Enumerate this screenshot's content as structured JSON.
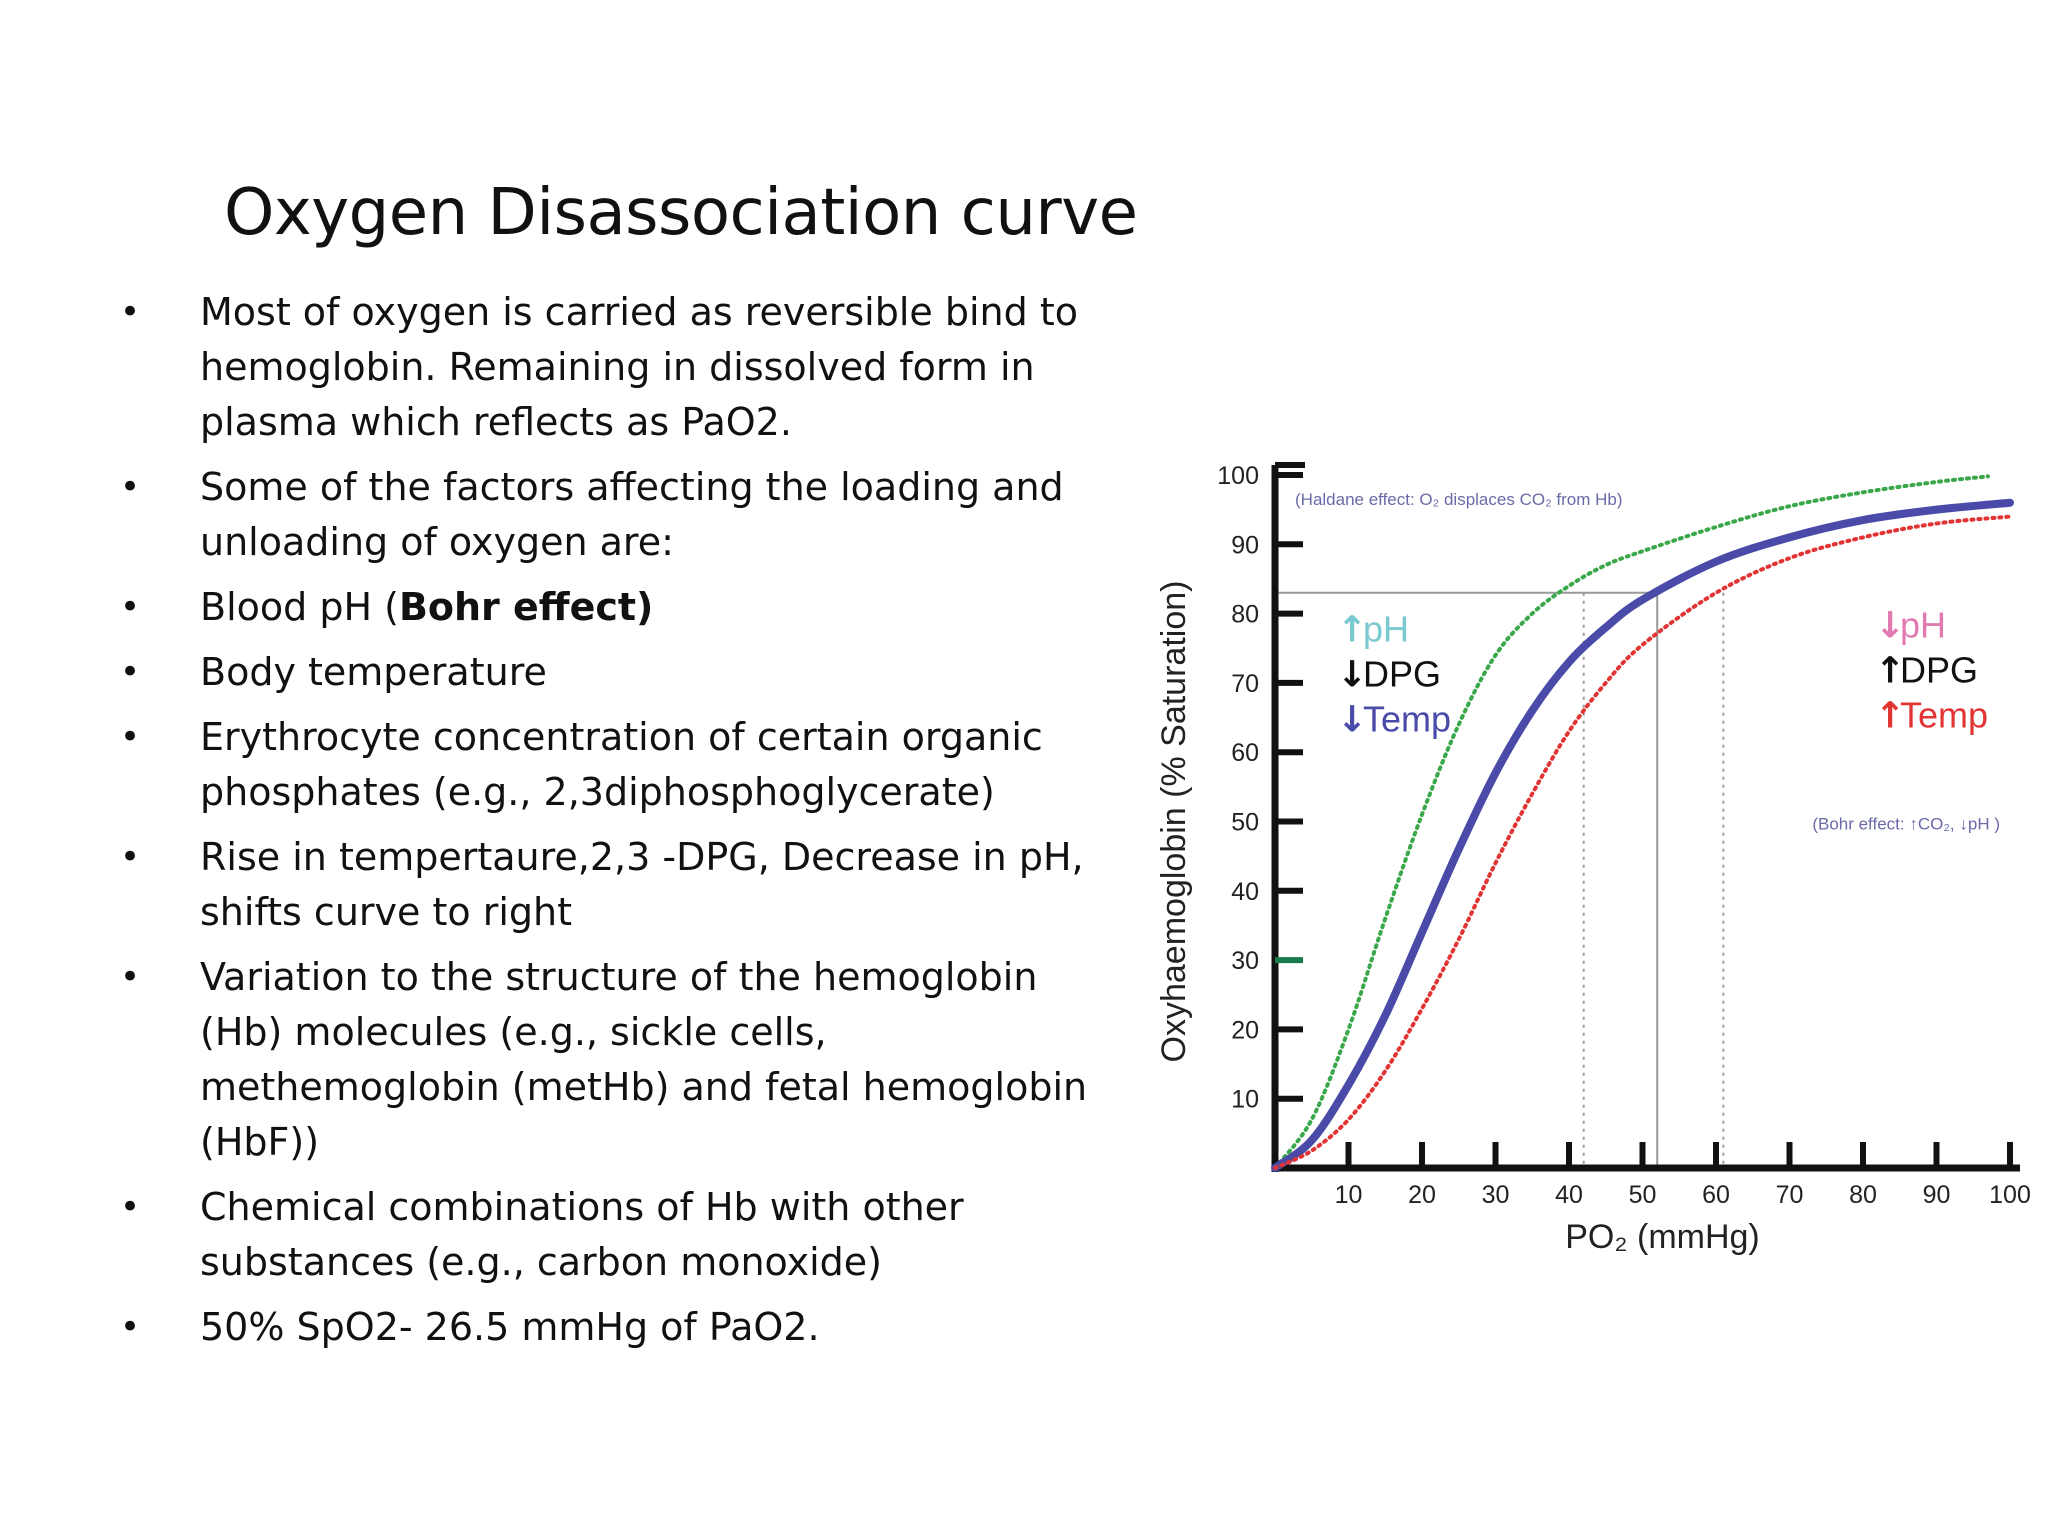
{
  "slide": {
    "title": "Oxygen Disassociation curve",
    "bullets": [
      {
        "text": "Most of oxygen is carried as reversible bind to hemoglobin. Remaining in dissolved form in plasma which reflects as PaO2."
      },
      {
        "text": " Some of the factors affecting the loading and unloading of oxygen are:"
      },
      {
        "text": " Blood pH (",
        "bold": "Bohr effect)"
      },
      {
        "text": " Body temperature"
      },
      {
        "text": " Erythrocyte concentration of certain organic phosphates (e.g., 2,3diphosphoglycerate)"
      },
      {
        "text": "Rise in tempertaure,2,3 -DPG, Decrease in pH, shifts curve to right"
      },
      {
        "text": " Variation to the structure of the hemoglobin (Hb) molecules (e.g., sickle cells, methemoglobin (metHb) and fetal hemoglobin (HbF))"
      },
      {
        "text": " Chemical combinations of Hb with other substances (e.g., carbon monoxide)"
      },
      {
        "text": "50% SpO2- 26.5 mmHg of PaO2."
      }
    ],
    "bullet_symbol": "•"
  },
  "chart_data": {
    "type": "line",
    "xlabel": "PO₂ (mmHg)",
    "ylabel": "Oxyhaemoglobin (% Saturation)",
    "xlim": [
      0,
      100
    ],
    "ylim": [
      0,
      100
    ],
    "xticks": [
      "10",
      "20",
      "30",
      "40",
      "50",
      "60",
      "70",
      "80",
      "90",
      "100"
    ],
    "yticks": [
      "10",
      "20",
      "30",
      "40",
      "50",
      "60",
      "70",
      "80",
      "90",
      "100"
    ],
    "grid": false,
    "series": [
      {
        "style": "dotted",
        "color": "#3aa84a",
        "x": [
          0,
          5,
          10,
          15,
          20,
          25,
          30,
          35,
          40,
          45,
          50,
          60,
          70,
          80,
          90,
          97
        ],
        "y": [
          0,
          7,
          20,
          36,
          51,
          64,
          74,
          80,
          84,
          87,
          89,
          92.5,
          95.5,
          97.5,
          99,
          99.8
        ]
      },
      {
        "style": "solid",
        "color": "#4a4aa8",
        "x": [
          0,
          5,
          10,
          15,
          20,
          25,
          30,
          35,
          40,
          45,
          50,
          60,
          70,
          80,
          90,
          100
        ],
        "y": [
          0,
          4,
          12,
          22,
          34,
          46,
          57,
          66,
          73,
          78,
          82,
          87.5,
          91,
          93.5,
          95,
          96
        ]
      },
      {
        "style": "dotted",
        "color": "#e33434",
        "x": [
          0,
          5,
          10,
          15,
          20,
          25,
          30,
          35,
          40,
          45,
          50,
          60,
          70,
          80,
          90,
          100
        ],
        "y": [
          0,
          2.5,
          7,
          14,
          23,
          33,
          44,
          54,
          63,
          70,
          75.5,
          83,
          88,
          91,
          93,
          94
        ]
      }
    ],
    "reference_lines": [
      {
        "style": "solid",
        "color": "#9a9a9a",
        "y": 83,
        "x_from": 0,
        "x_to": 52
      },
      {
        "style": "dotted",
        "color": "#9a9a9a",
        "x": 42,
        "y": 83
      },
      {
        "style": "solid",
        "color": "#9a9a9a",
        "x": 52,
        "y": 83
      },
      {
        "style": "dotted",
        "color": "#9a9a9a",
        "x": 61,
        "y": 83
      }
    ],
    "highlight_tick": {
      "y": 30,
      "color": "#1a7a4a"
    },
    "annotations": {
      "haldane": {
        "text": "(Haldane effect: O₂ displaces CO₂ from Hb)",
        "color": "#6a6aa8"
      },
      "bohr": {
        "text": "(Bohr effect: ↑CO₂, ↓pH )",
        "color": "#6a6aa8"
      },
      "left_factors": [
        {
          "arrow": "↑",
          "label": "pH",
          "color": "#7ac8d0"
        },
        {
          "arrow": "↓",
          "label": "DPG",
          "color": "#111111"
        },
        {
          "arrow": "↓",
          "label": "Temp",
          "color": "#4a4aa8"
        }
      ],
      "right_factors": [
        {
          "arrow": "↓",
          "label": "pH",
          "color": "#e07ab0"
        },
        {
          "arrow": "↑",
          "label": "DPG",
          "color": "#111111"
        },
        {
          "arrow": "↑",
          "label": "Temp",
          "color": "#e33434"
        }
      ]
    }
  }
}
